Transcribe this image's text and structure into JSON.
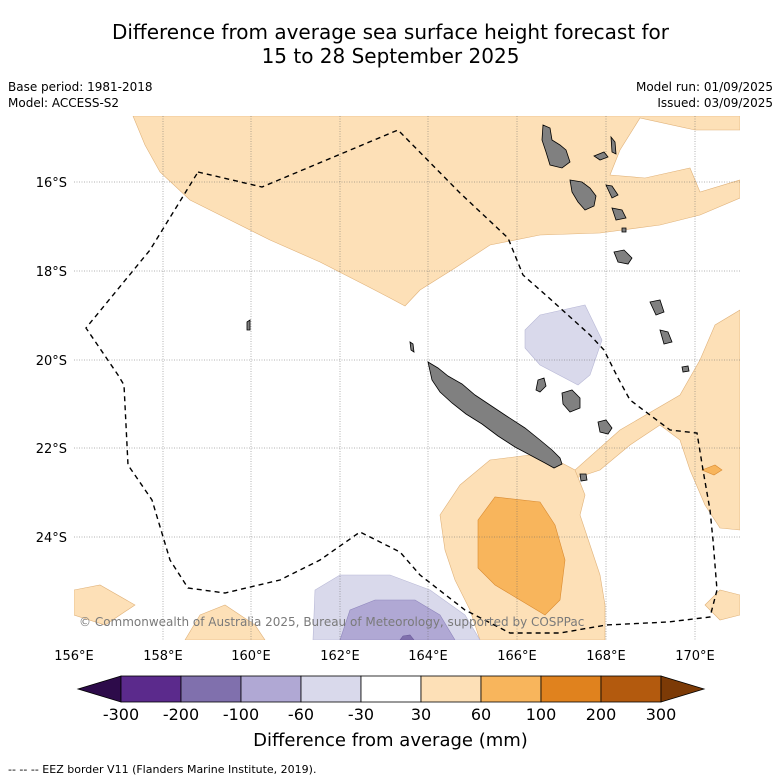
{
  "title_line1": "Difference from average sea surface height forecast for",
  "title_line2": "15 to 28 September 2025",
  "left_meta": {
    "base_period": "Base period: 1981-2018",
    "model": "Model: ACCESS-S2"
  },
  "right_meta": {
    "model_run": "Model run: 01/09/2025",
    "issued": "Issued: 03/09/2025"
  },
  "lat_labels": [
    "16°S",
    "18°S",
    "20°S",
    "22°S",
    "24°S"
  ],
  "lon_labels": [
    "156°E",
    "158°E",
    "160°E",
    "162°E",
    "164°E",
    "166°E",
    "168°E",
    "170°E"
  ],
  "copyright": "© Commonwealth of Australia 2025, Bureau of Meteorology, supported by COSPPac",
  "colorbar": {
    "ticks": [
      "-300",
      "-200",
      "-100",
      "-60",
      "-30",
      "30",
      "60",
      "100",
      "200",
      "300"
    ],
    "colors": {
      "below_min": "#2d0b4a",
      "b1": "#5b2a8c",
      "b2": "#8070ad",
      "b3": "#b0a8d4",
      "b4": "#d9d9eb",
      "b5": "#ffffff",
      "b6": "#fde0b7",
      "b7": "#f8b55c",
      "b8": "#e0821e",
      "b9": "#b35a0e",
      "above_max": "#7c3a06"
    },
    "title": "Difference from average (mm)"
  },
  "land_color": "#808080",
  "footer": "--  --  -- EEZ border V11 (Flanders Marine Institute, 2019)."
}
